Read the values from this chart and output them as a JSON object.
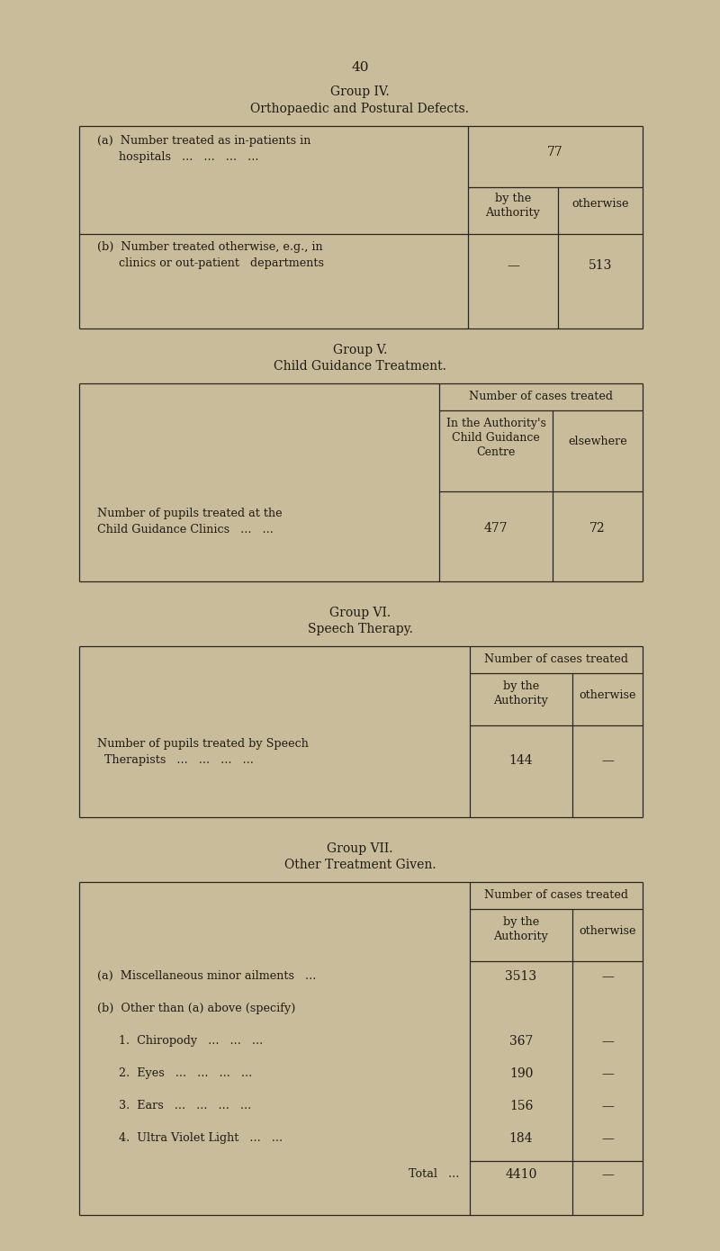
{
  "bg_color": "#c9bc9a",
  "line_color": "#2a2520",
  "text_color": "#1e1a14",
  "page_number": "40",
  "group4_title": "Group IV.",
  "group4_subtitle": "Orthopaedic and Postural Defects.",
  "group5_title": "Group V.",
  "group5_subtitle": "Child Guidance Treatment.",
  "group6_title": "Group VI.",
  "group6_subtitle": "Speech Therapy.",
  "group7_title": "Group VII.",
  "group7_subtitle": "Other Treatment Given.",
  "fig_w": 8.0,
  "fig_h": 13.9,
  "dpi": 100
}
